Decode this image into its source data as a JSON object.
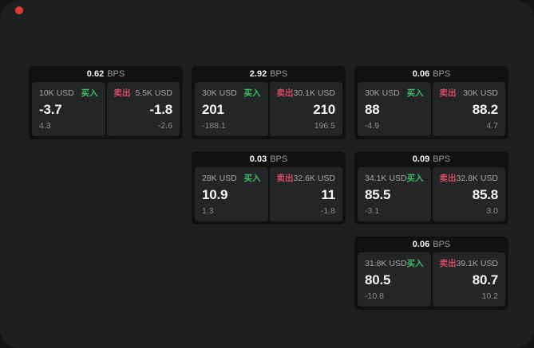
{
  "window": {
    "background": "#1d1f20",
    "outside_background": "#141414"
  },
  "indicator": {
    "color": "#e03a34"
  },
  "labels": {
    "buy": "买入",
    "sell": "卖出",
    "bps_unit": "BPS"
  },
  "colors": {
    "buy_green": "#3cbd64",
    "sell_red": "#d84a63",
    "card_bg": "#101112",
    "panel_bg": "#242526"
  },
  "cards": [
    {
      "col": 1,
      "row": 1,
      "bps": "0.62",
      "buy": {
        "amount": "10K USD",
        "price": "-3.7",
        "sub": "4.3"
      },
      "sell": {
        "amount": "5.5K USD",
        "price": "-1.8",
        "sub": "-2.6"
      }
    },
    {
      "col": 2,
      "row": 1,
      "bps": "2.92",
      "buy": {
        "amount": "30K USD",
        "price": "201",
        "sub": "-188.1"
      },
      "sell": {
        "amount": "30.1K USD",
        "price": "210",
        "sub": "196.5"
      }
    },
    {
      "col": 3,
      "row": 1,
      "bps": "0.06",
      "buy": {
        "amount": "30K USD",
        "price": "88",
        "sub": "-4.9"
      },
      "sell": {
        "amount": "30K USD",
        "price": "88.2",
        "sub": "4.7"
      }
    },
    {
      "col": 2,
      "row": 2,
      "bps": "0.03",
      "buy": {
        "amount": "28K USD",
        "price": "10.9",
        "sub": "1.3"
      },
      "sell": {
        "amount": "32.6K USD",
        "price": "11",
        "sub": "-1.8"
      }
    },
    {
      "col": 3,
      "row": 2,
      "bps": "0.09",
      "buy": {
        "amount": "34.1K USD",
        "price": "85.5",
        "sub": "-3.1"
      },
      "sell": {
        "amount": "32.8K USD",
        "price": "85.8",
        "sub": "3.0"
      }
    },
    {
      "col": 3,
      "row": 3,
      "bps": "0.06",
      "buy": {
        "amount": "31.8K USD",
        "price": "80.5",
        "sub": "-10.8"
      },
      "sell": {
        "amount": "39.1K USD",
        "price": "80.7",
        "sub": "10.2"
      }
    }
  ]
}
